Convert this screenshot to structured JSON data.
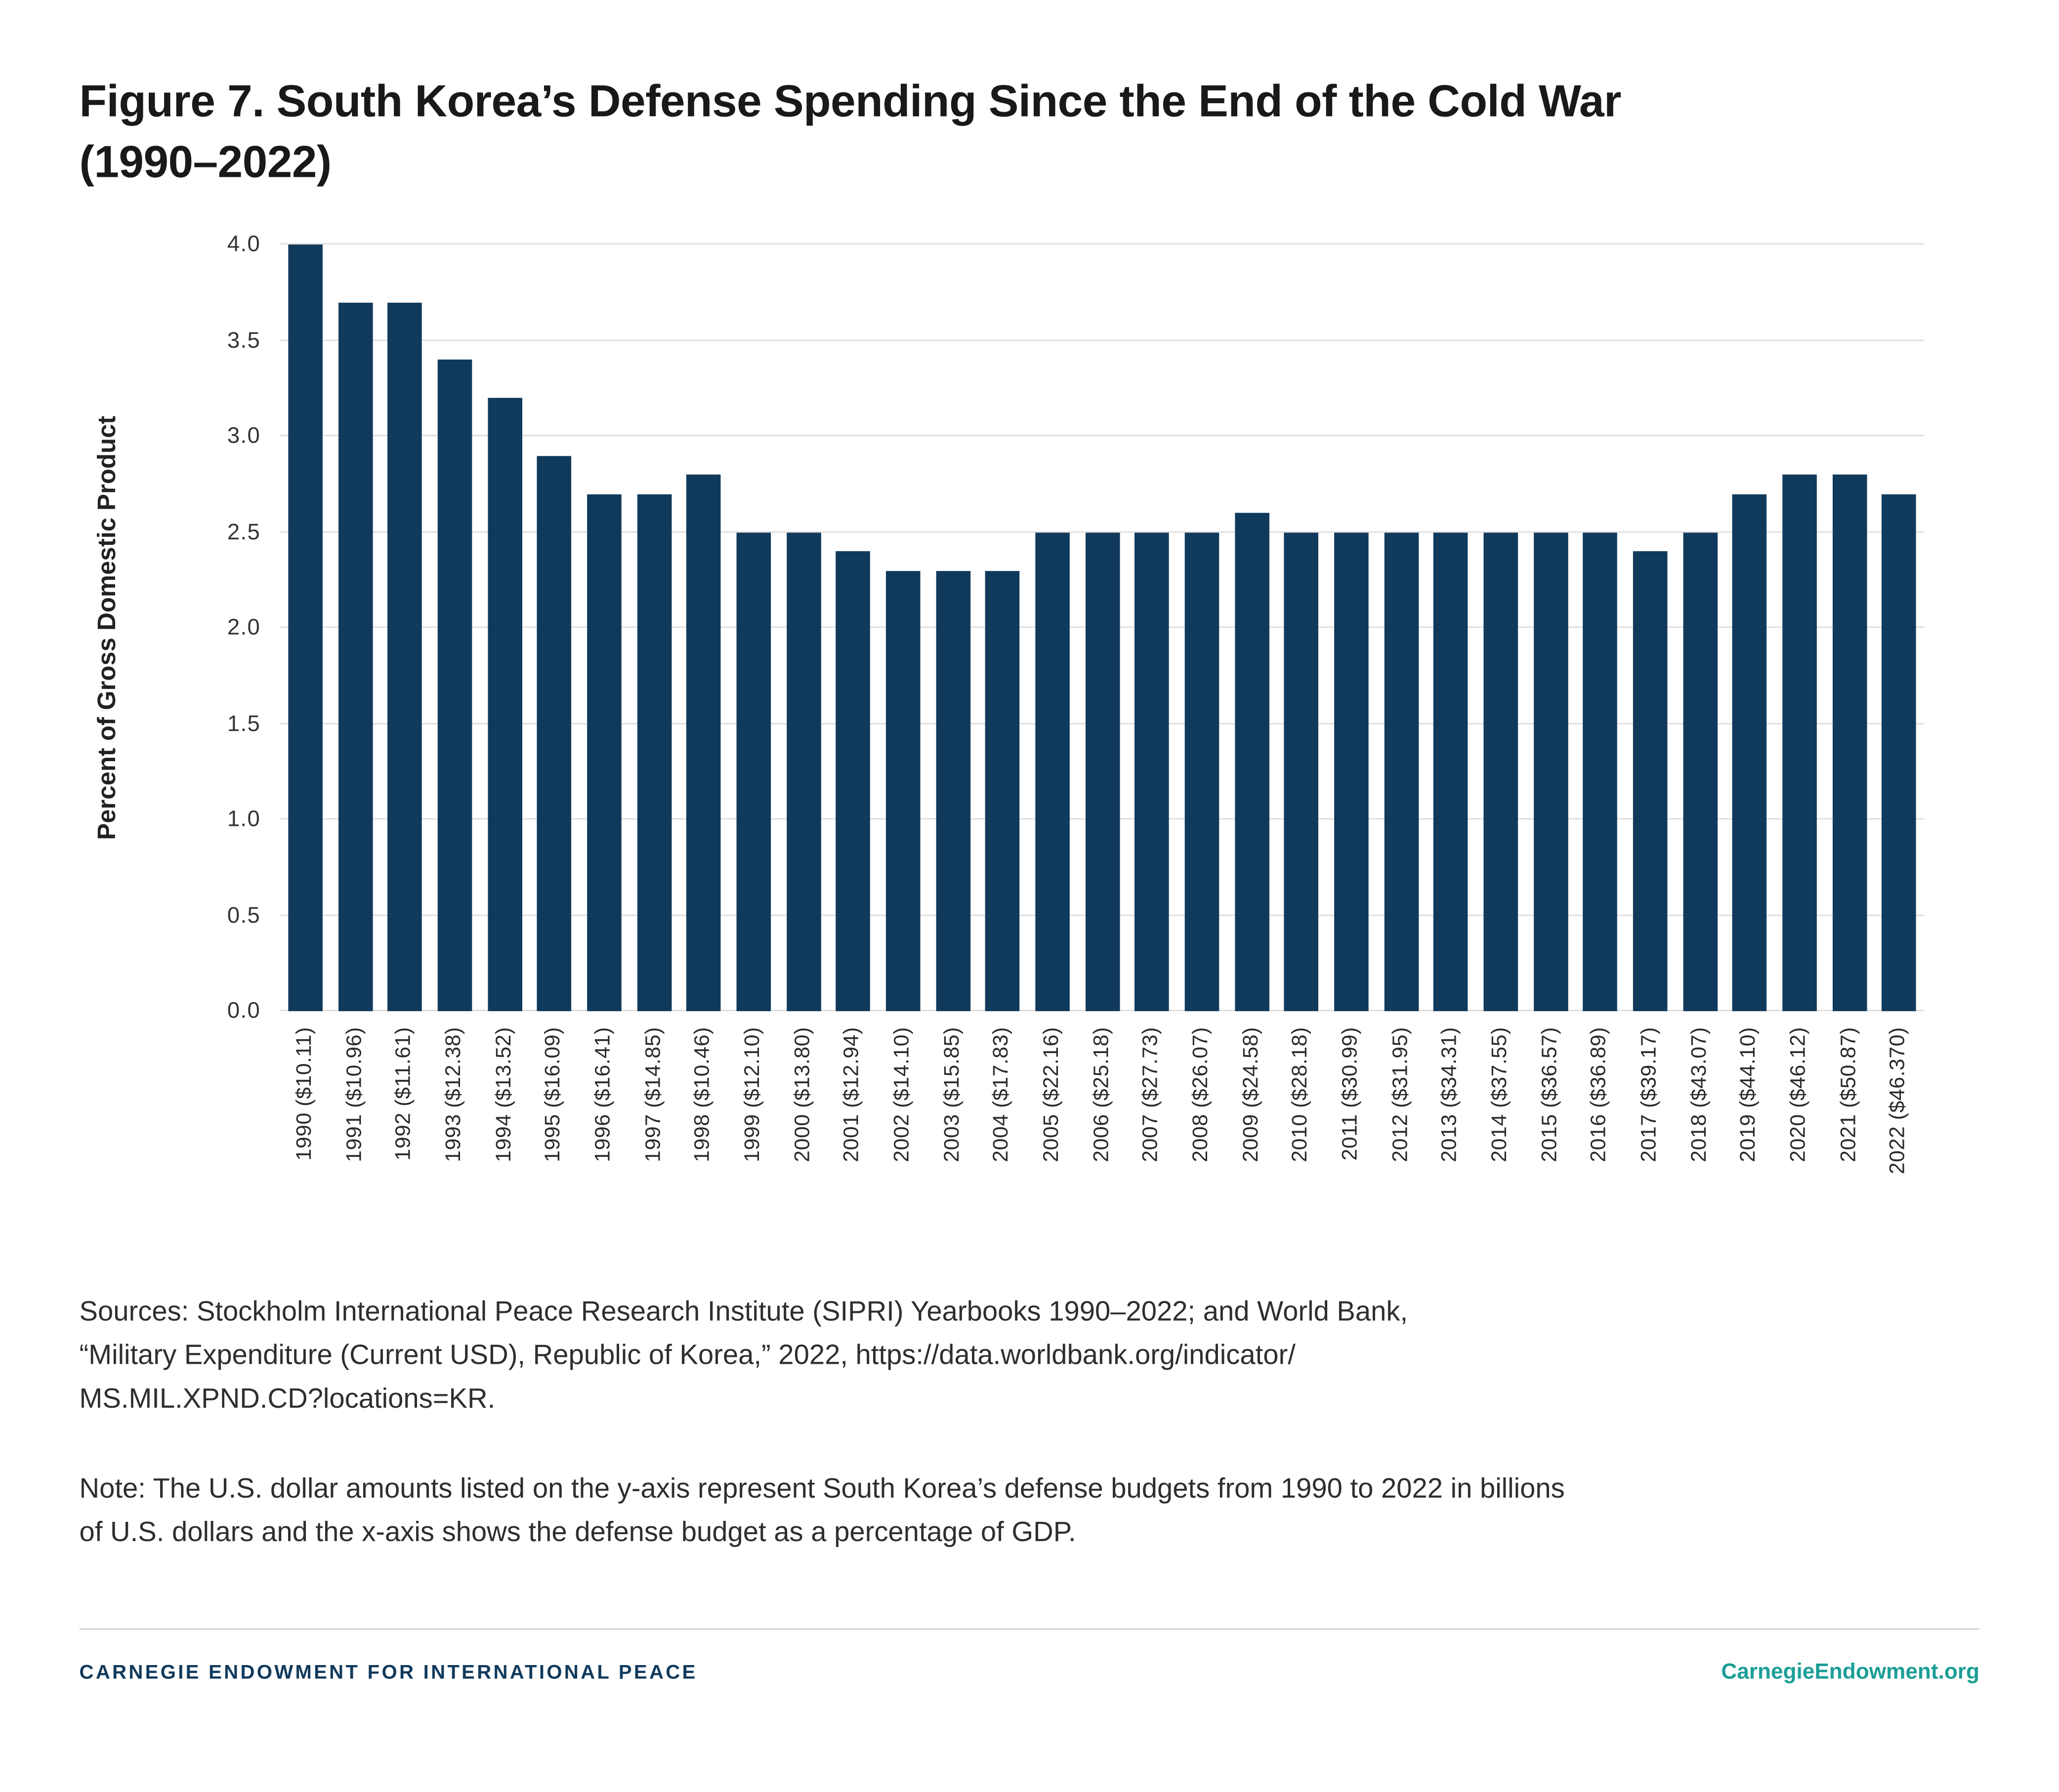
{
  "title": {
    "line1": "Figure 7. South Korea’s Defense Spending Since the End of the Cold War",
    "line2": "(1990–2022)"
  },
  "chart_data": {
    "type": "bar",
    "title": "Figure 7. South Korea’s Defense Spending Since the End of the Cold War (1990–2022)",
    "xlabel": "",
    "ylabel": "Percent of Gross Domestic Product",
    "ylim": [
      0,
      4.0
    ],
    "yticks": [
      0.0,
      0.5,
      1.0,
      1.5,
      2.0,
      2.5,
      3.0,
      3.5,
      4.0
    ],
    "grid": true,
    "legend": "none",
    "bar_color": "#103a5c",
    "categories": [
      "1990 ($10.11)",
      "1991 ($10.96)",
      "1992 ($11.61)",
      "1993 ($12.38)",
      "1994 ($13.52)",
      "1995 ($16.09)",
      "1996 ($16.41)",
      "1997 ($14.85)",
      "1998 ($10.46)",
      "1999 ($12.10)",
      "2000 ($13.80)",
      "2001 ($12.94)",
      "2002 ($14.10)",
      "2003 ($15.85)",
      "2004 ($17.83)",
      "2005 ($22.16)",
      "2006 ($25.18)",
      "2007 ($27.73)",
      "2008 ($26.07)",
      "2009 ($24.58)",
      "2010 ($28.18)",
      "2011 ($30.99)",
      "2012 ($31.95)",
      "2013 ($34.31)",
      "2014 ($37.55)",
      "2015 ($36.57)",
      "2016 ($36.89)",
      "2017 ($39.17)",
      "2018 ($43.07)",
      "2019 ($44.10)",
      "2020 ($46.12)",
      "2021 ($50.87)",
      "2022 ($46.370)"
    ],
    "values": [
      4.0,
      3.7,
      3.7,
      3.4,
      3.2,
      2.9,
      2.7,
      2.7,
      2.8,
      2.5,
      2.5,
      2.4,
      2.3,
      2.3,
      2.3,
      2.5,
      2.5,
      2.5,
      2.5,
      2.6,
      2.5,
      2.5,
      2.5,
      2.5,
      2.5,
      2.5,
      2.5,
      2.4,
      2.5,
      2.7,
      2.8,
      2.8,
      2.7
    ]
  },
  "sources": {
    "lines": [
      "Sources: Stockholm International Peace Research Institute (SIPRI) Yearbooks 1990–2022; and World Bank,",
      "“Military Expenditure (Current USD), Republic of Korea,” 2022, https://data.worldbank.org/indicator/",
      "MS.MIL.XPND.CD?locations=KR."
    ]
  },
  "note": {
    "lines": [
      "Note: The U.S. dollar amounts listed on the y-axis represent South Korea’s defense budgets from 1990 to 2022 in billions",
      "of U.S. dollars and the x-axis shows the defense budget as a percentage of GDP."
    ]
  },
  "footer": {
    "org": "CARNEGIE ENDOWMENT FOR INTERNATIONAL PEACE",
    "site": "CarnegieEndowment.org"
  },
  "colors": {
    "bar_navy": "#103a5c",
    "footer_navy": "#103a5c",
    "teal": "#1b9e96",
    "gridline": "#dcdcdc",
    "title_text": "#191919",
    "body_text": "#2e2e2e"
  }
}
